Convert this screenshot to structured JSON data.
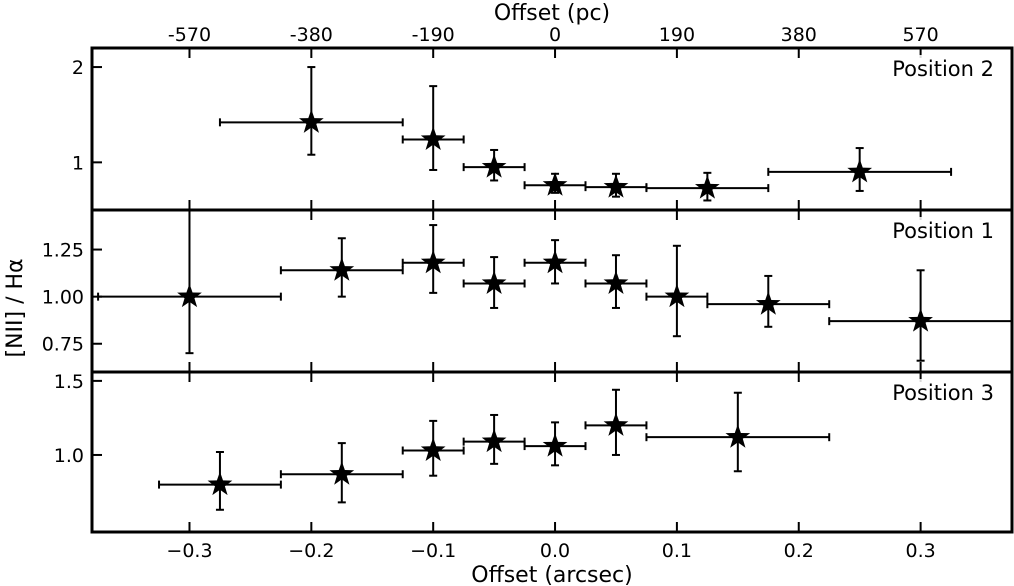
{
  "figure": {
    "top_axis_label": "Offset (pc)",
    "bottom_axis_label": "Offset (arcsec)",
    "y_axis_label": "[NII] / Hα"
  },
  "chart_data": {
    "type": "scatter",
    "marker": "star",
    "shared_x": {
      "label": "Offset (arcsec)",
      "range": [
        -0.38,
        0.375
      ],
      "ticks": [
        -0.3,
        -0.2,
        -0.1,
        0.0,
        0.1,
        0.2,
        0.3
      ],
      "tick_labels": [
        "−0.3",
        "−0.2",
        "−0.1",
        "0.0",
        "0.1",
        "0.2",
        "0.3"
      ]
    },
    "top_x": {
      "label": "Offset (pc)",
      "ticks": [
        -0.3,
        -0.2,
        -0.1,
        0.0,
        0.1,
        0.2,
        0.3
      ],
      "tick_labels": [
        "-570",
        "-380",
        "-190",
        "0",
        "190",
        "380",
        "570"
      ]
    },
    "y_label": "[NII] / Hα",
    "panels": [
      {
        "label": "Position 2",
        "ylim": [
          0.5,
          2.2
        ],
        "yticks": [
          1,
          2
        ],
        "ytick_labels": [
          "1",
          "2"
        ],
        "points": [
          {
            "x": -0.2,
            "y": 1.42,
            "xerr": [
              0.075,
              0.075
            ],
            "yerr": [
              0.34,
              0.58
            ]
          },
          {
            "x": -0.1,
            "y": 1.24,
            "xerr": [
              0.025,
              0.025
            ],
            "yerr": [
              0.32,
              0.56
            ]
          },
          {
            "x": -0.05,
            "y": 0.95,
            "xerr": [
              0.025,
              0.025
            ],
            "yerr": [
              0.14,
              0.18
            ]
          },
          {
            "x": 0.0,
            "y": 0.76,
            "xerr": [
              0.025,
              0.025
            ],
            "yerr": [
              0.08,
              0.12
            ]
          },
          {
            "x": 0.05,
            "y": 0.74,
            "xerr": [
              0.025,
              0.025
            ],
            "yerr": [
              0.1,
              0.14
            ]
          },
          {
            "x": 0.125,
            "y": 0.73,
            "xerr": [
              0.05,
              0.05
            ],
            "yerr": [
              0.13,
              0.16
            ]
          },
          {
            "x": 0.25,
            "y": 0.9,
            "xerr": [
              0.075,
              0.075
            ],
            "yerr": [
              0.2,
              0.25
            ]
          }
        ]
      },
      {
        "label": "Position 1",
        "ylim": [
          0.6,
          1.46
        ],
        "yticks": [
          0.75,
          1.0,
          1.25
        ],
        "ytick_labels": [
          "0.75",
          "1.00",
          "1.25"
        ],
        "points": [
          {
            "x": -0.3,
            "y": 1.0,
            "xerr": [
              0.075,
              0.075
            ],
            "yerr": [
              0.3,
              0.46
            ]
          },
          {
            "x": -0.175,
            "y": 1.14,
            "xerr": [
              0.05,
              0.05
            ],
            "yerr": [
              0.14,
              0.17
            ]
          },
          {
            "x": -0.1,
            "y": 1.18,
            "xerr": [
              0.025,
              0.025
            ],
            "yerr": [
              0.16,
              0.2
            ]
          },
          {
            "x": -0.05,
            "y": 1.07,
            "xerr": [
              0.025,
              0.025
            ],
            "yerr": [
              0.13,
              0.14
            ]
          },
          {
            "x": 0.0,
            "y": 1.18,
            "xerr": [
              0.025,
              0.025
            ],
            "yerr": [
              0.11,
              0.12
            ]
          },
          {
            "x": 0.05,
            "y": 1.07,
            "xerr": [
              0.025,
              0.025
            ],
            "yerr": [
              0.13,
              0.15
            ]
          },
          {
            "x": 0.1,
            "y": 1.0,
            "xerr": [
              0.025,
              0.025
            ],
            "yerr": [
              0.21,
              0.27
            ]
          },
          {
            "x": 0.175,
            "y": 0.96,
            "xerr": [
              0.05,
              0.05
            ],
            "yerr": [
              0.12,
              0.15
            ]
          },
          {
            "x": 0.3,
            "y": 0.87,
            "xerr": [
              0.075,
              0.075
            ],
            "yerr": [
              0.21,
              0.27
            ]
          }
        ]
      },
      {
        "label": "Position 3",
        "ylim": [
          0.48,
          1.56
        ],
        "yticks": [
          1.0,
          1.5
        ],
        "ytick_labels": [
          "1.0",
          "1.5"
        ],
        "points": [
          {
            "x": -0.275,
            "y": 0.8,
            "xerr": [
              0.05,
              0.05
            ],
            "yerr": [
              0.17,
              0.22
            ]
          },
          {
            "x": -0.175,
            "y": 0.87,
            "xerr": [
              0.05,
              0.05
            ],
            "yerr": [
              0.19,
              0.21
            ]
          },
          {
            "x": -0.1,
            "y": 1.03,
            "xerr": [
              0.025,
              0.025
            ],
            "yerr": [
              0.17,
              0.2
            ]
          },
          {
            "x": -0.05,
            "y": 1.09,
            "xerr": [
              0.025,
              0.025
            ],
            "yerr": [
              0.15,
              0.18
            ]
          },
          {
            "x": 0.0,
            "y": 1.06,
            "xerr": [
              0.025,
              0.025
            ],
            "yerr": [
              0.13,
              0.16
            ]
          },
          {
            "x": 0.05,
            "y": 1.2,
            "xerr": [
              0.025,
              0.025
            ],
            "yerr": [
              0.2,
              0.24
            ]
          },
          {
            "x": 0.15,
            "y": 1.12,
            "xerr": [
              0.075,
              0.075
            ],
            "yerr": [
              0.23,
              0.3
            ]
          }
        ]
      }
    ]
  }
}
